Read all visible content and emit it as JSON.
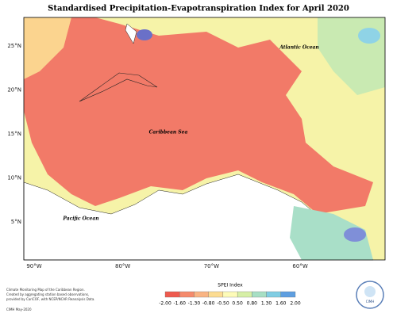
{
  "title": "Standardised Precipitation-Evapotranspiration Index for April 2020",
  "map": {
    "lat_labels": [
      "25°N",
      "20°N",
      "15°N",
      "10°N",
      "5°N"
    ],
    "lon_labels": [
      "90°W",
      "80°W",
      "70°W",
      "60°W"
    ],
    "ocean_labels": [
      "Atlantic Ocean",
      "Caribbean Sea",
      "Pacific Ocean"
    ]
  },
  "legend": {
    "title": "SPEI Index",
    "ticks": [
      "-2.00",
      "-1.60",
      "-1.30",
      "-0.80",
      "-0.50",
      "0.50",
      "0.80",
      "1.30",
      "1.60",
      "2.00"
    ],
    "colors": [
      "#ee5a4e",
      "#f58a6c",
      "#f9b483",
      "#fcdc92",
      "#fdfbb8",
      "#d6efa6",
      "#a7dfc4",
      "#80cde3",
      "#5e9ee0"
    ]
  },
  "footer": {
    "lines": [
      "Climate Monitoring Map of the Caribbean Region.",
      "Created by aggregating station based observations,",
      "provided by CariCOF, with NCEP/NCAR Reanalysis Data."
    ],
    "credit": "CIMH May-2020"
  },
  "logo": "CIMH"
}
